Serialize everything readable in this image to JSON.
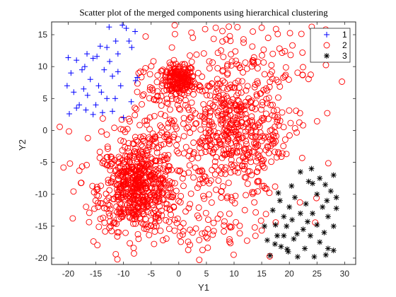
{
  "chart_data": {
    "type": "scatter",
    "title": "Scatter plot of the merged components using hierarchical clustering",
    "xlabel": "Y1",
    "ylabel": "Y2",
    "xlim": [
      -23,
      32
    ],
    "ylim": [
      -21,
      17
    ],
    "xticks": [
      -20,
      -15,
      -10,
      -5,
      0,
      5,
      10,
      15,
      20,
      25,
      30
    ],
    "yticks": [
      -20,
      -15,
      -10,
      -5,
      0,
      5,
      10,
      15
    ],
    "xtick_labels": [
      "-20",
      "-15",
      "-10",
      "-5",
      "0",
      "5",
      "10",
      "15",
      "20",
      "25",
      "30"
    ],
    "ytick_labels": [
      "-20",
      "-15",
      "-10",
      "-5",
      "0",
      "5",
      "10",
      "15"
    ],
    "grid": false,
    "legend_position": "top-right",
    "series": [
      {
        "name": "1",
        "marker": "plus",
        "color": "#0000ff",
        "points": [
          [
            -20,
            11.4
          ],
          [
            -20.2,
            7
          ],
          [
            -19.5,
            9
          ],
          [
            -19,
            6
          ],
          [
            -18.5,
            11
          ],
          [
            -18,
            4
          ],
          [
            -17.5,
            9.5
          ],
          [
            -17.2,
            6.5
          ],
          [
            -17,
            10
          ],
          [
            -16.5,
            5.5
          ],
          [
            -16.6,
            12
          ],
          [
            -16,
            8
          ],
          [
            -15.5,
            11.3
          ],
          [
            -15,
            4
          ],
          [
            -15.5,
            2.5
          ],
          [
            -14.8,
            11.6
          ],
          [
            -14.5,
            7
          ],
          [
            -14,
            6
          ],
          [
            -13.5,
            9.5
          ],
          [
            -13,
            13
          ],
          [
            -12.5,
            10.8
          ],
          [
            -12,
            8.5
          ],
          [
            -11.5,
            5
          ],
          [
            -12,
            3
          ],
          [
            -11.4,
            14
          ],
          [
            -10.5,
            7
          ],
          [
            -10,
            2
          ],
          [
            -11,
            12
          ],
          [
            -9.5,
            16
          ],
          [
            -9,
            14
          ],
          [
            -8.5,
            13
          ],
          [
            -7.8,
            7.8
          ],
          [
            -7.5,
            8.3
          ],
          [
            -7.9,
            15.5
          ],
          [
            -13,
            5
          ],
          [
            -18.5,
            3.5
          ],
          [
            -14.2,
            13.2
          ],
          [
            -16.8,
            3.2
          ],
          [
            -10.2,
            16.5
          ],
          [
            -12.6,
            16.2
          ],
          [
            -19.8,
            2.6
          ],
          [
            -11,
            9.2
          ],
          [
            -13.8,
            2.8
          ],
          [
            -8.6,
            4.5
          ]
        ]
      },
      {
        "name": "2",
        "marker": "circle",
        "color": "#ff0000",
        "clusters": [
          {
            "center": [
              0,
              8
            ],
            "spread": [
              1.4,
              1.2
            ],
            "count": 170
          },
          {
            "center": [
              -7.5,
              -9
            ],
            "spread": [
              3.5,
              3.3
            ],
            "count": 560
          },
          {
            "center": [
              10,
              -0.5
            ],
            "spread": [
              5,
              4.5
            ],
            "count": 420
          },
          {
            "center": [
              -3,
              1
            ],
            "spread": [
              7.5,
              6
            ],
            "count": 220
          },
          {
            "center": [
              10,
              10
            ],
            "spread": [
              9,
              4
            ],
            "count": 160
          },
          {
            "center": [
              5,
              -13
            ],
            "spread": [
              10,
              4.5
            ],
            "count": 140
          }
        ],
        "x_range": [
          -22,
          30
        ],
        "y_range": [
          -20.5,
          16.5
        ]
      },
      {
        "name": "3",
        "marker": "asterisk",
        "color": "#000000",
        "points": [
          [
            15.5,
            -15
          ],
          [
            16,
            -17.2
          ],
          [
            16.5,
            -19.6
          ],
          [
            17,
            -12.5
          ],
          [
            17.5,
            -14.8
          ],
          [
            17.8,
            -16.5
          ],
          [
            18,
            -9.8
          ],
          [
            18.3,
            -11
          ],
          [
            18.5,
            -18.2
          ],
          [
            19,
            -13.5
          ],
          [
            19,
            -16.5
          ],
          [
            19.5,
            -15
          ],
          [
            19.8,
            -19
          ],
          [
            20,
            -12
          ],
          [
            20.5,
            -14
          ],
          [
            20.8,
            -17
          ],
          [
            21,
            -10.5
          ],
          [
            21.5,
            -19.8
          ],
          [
            22,
            -6.5
          ],
          [
            22,
            -13
          ],
          [
            22.5,
            -15.5
          ],
          [
            22.8,
            -18.5
          ],
          [
            23,
            -11.5
          ],
          [
            23.5,
            -8
          ],
          [
            23.8,
            -16.5
          ],
          [
            24,
            -6
          ],
          [
            24.2,
            -13
          ],
          [
            24.5,
            -19.8
          ],
          [
            25,
            -10
          ],
          [
            25,
            -14.8
          ],
          [
            25.5,
            -7.5
          ],
          [
            25.5,
            -17.5
          ],
          [
            26,
            -12
          ],
          [
            26.3,
            -16
          ],
          [
            26.5,
            -8.5
          ],
          [
            27,
            -13.5
          ],
          [
            27,
            -18.5
          ],
          [
            27.5,
            -9.5
          ],
          [
            28,
            -7
          ],
          [
            28,
            -15
          ],
          [
            28,
            -18.8
          ],
          [
            28.5,
            -12.2
          ],
          [
            28.5,
            -10.5
          ],
          [
            24.2,
            -8.3
          ],
          [
            26.6,
            -19.5
          ],
          [
            21.4,
            -16.2
          ],
          [
            20.4,
            -8.7
          ],
          [
            17.4,
            -17.8
          ],
          [
            23.3,
            -14.3
          ],
          [
            26.8,
            -11
          ],
          [
            19.6,
            -18.6
          ]
        ]
      }
    ]
  },
  "legend": {
    "items": [
      {
        "label": "1",
        "marker": "plus",
        "color": "#0000ff"
      },
      {
        "label": "2",
        "marker": "circle",
        "color": "#ff0000"
      },
      {
        "label": "3",
        "marker": "asterisk",
        "color": "#000000"
      }
    ]
  }
}
